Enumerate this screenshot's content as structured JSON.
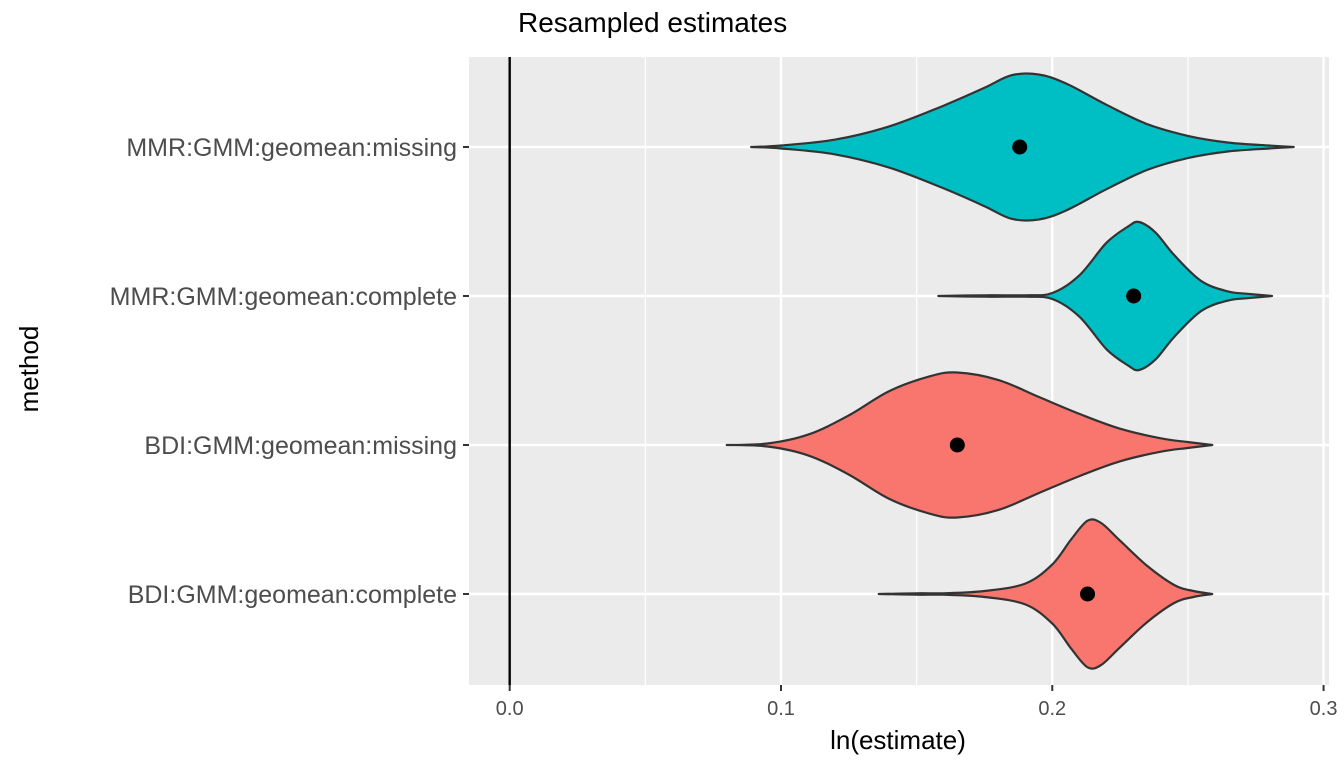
{
  "chart_data": {
    "type": "violin",
    "title": "Resampled estimates",
    "xlabel": "ln(estimate)",
    "ylabel": "method",
    "xlim": [
      -0.015,
      0.302
    ],
    "x_ticks": [
      "0.0",
      "0.1",
      "0.2",
      "0.3"
    ],
    "x_tick_values": [
      0.0,
      0.1,
      0.2,
      0.3
    ],
    "grid": true,
    "reference_line": {
      "x": 0.0,
      "color": "#000000"
    },
    "panel_background": "#ebebeb",
    "categories": [
      "MMR:GMM:geomean:missing",
      "MMR:GMM:geomean:complete",
      "BDI:GMM:geomean:missing",
      "BDI:GMM:geomean:complete"
    ],
    "series": [
      {
        "category": "MMR:GMM:geomean:missing",
        "color": "#00bfc4",
        "point": 0.188,
        "profile": [
          [
            0.089,
            0.0
          ],
          [
            0.1,
            0.02
          ],
          [
            0.12,
            0.1
          ],
          [
            0.14,
            0.28
          ],
          [
            0.16,
            0.56
          ],
          [
            0.175,
            0.8
          ],
          [
            0.185,
            0.97
          ],
          [
            0.195,
            0.98
          ],
          [
            0.205,
            0.86
          ],
          [
            0.22,
            0.57
          ],
          [
            0.235,
            0.31
          ],
          [
            0.25,
            0.15
          ],
          [
            0.265,
            0.06
          ],
          [
            0.28,
            0.02
          ],
          [
            0.289,
            0.0
          ]
        ]
      },
      {
        "category": "MMR:GMM:geomean:complete",
        "color": "#00bfc4",
        "point": 0.23,
        "profile": [
          [
            0.158,
            0.0
          ],
          [
            0.175,
            0.01
          ],
          [
            0.19,
            0.01
          ],
          [
            0.2,
            0.04
          ],
          [
            0.21,
            0.28
          ],
          [
            0.22,
            0.72
          ],
          [
            0.228,
            0.94
          ],
          [
            0.232,
            1.0
          ],
          [
            0.238,
            0.86
          ],
          [
            0.245,
            0.55
          ],
          [
            0.255,
            0.2
          ],
          [
            0.265,
            0.06
          ],
          [
            0.272,
            0.03
          ],
          [
            0.281,
            0.0
          ]
        ]
      },
      {
        "category": "BDI:GMM:geomean:missing",
        "color": "#f8766d",
        "point": 0.165,
        "profile": [
          [
            0.08,
            0.0
          ],
          [
            0.095,
            0.02
          ],
          [
            0.11,
            0.14
          ],
          [
            0.125,
            0.4
          ],
          [
            0.14,
            0.73
          ],
          [
            0.155,
            0.93
          ],
          [
            0.165,
            0.98
          ],
          [
            0.18,
            0.88
          ],
          [
            0.195,
            0.65
          ],
          [
            0.21,
            0.42
          ],
          [
            0.225,
            0.22
          ],
          [
            0.24,
            0.09
          ],
          [
            0.25,
            0.04
          ],
          [
            0.259,
            0.0
          ]
        ]
      },
      {
        "category": "BDI:GMM:geomean:complete",
        "color": "#f8766d",
        "point": 0.213,
        "profile": [
          [
            0.136,
            0.0
          ],
          [
            0.15,
            0.01
          ],
          [
            0.16,
            0.01
          ],
          [
            0.175,
            0.04
          ],
          [
            0.19,
            0.14
          ],
          [
            0.2,
            0.4
          ],
          [
            0.207,
            0.74
          ],
          [
            0.213,
            0.99
          ],
          [
            0.218,
            0.96
          ],
          [
            0.225,
            0.72
          ],
          [
            0.235,
            0.38
          ],
          [
            0.245,
            0.12
          ],
          [
            0.252,
            0.04
          ],
          [
            0.259,
            0.0
          ]
        ]
      }
    ]
  }
}
